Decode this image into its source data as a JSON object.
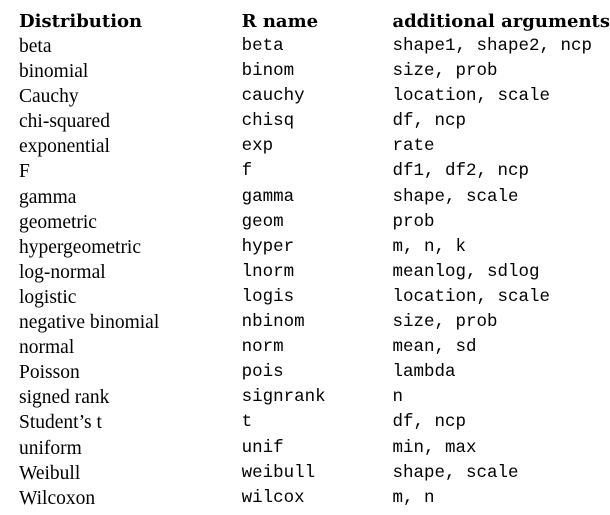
{
  "table": {
    "headers": [
      "Distribution",
      "R name",
      "additional arguments"
    ],
    "rows": [
      {
        "distribution": "beta",
        "r_name": "beta",
        "args": "shape1, shape2, ncp"
      },
      {
        "distribution": "binomial",
        "r_name": "binom",
        "args": "size, prob"
      },
      {
        "distribution": "Cauchy",
        "r_name": "cauchy",
        "args": "location, scale"
      },
      {
        "distribution": "chi-squared",
        "r_name": "chisq",
        "args": "df, ncp"
      },
      {
        "distribution": "exponential",
        "r_name": "exp",
        "args": "rate"
      },
      {
        "distribution": "F",
        "r_name": "f",
        "args": "df1, df2, ncp"
      },
      {
        "distribution": "gamma",
        "r_name": "gamma",
        "args": "shape, scale"
      },
      {
        "distribution": "geometric",
        "r_name": "geom",
        "args": "prob"
      },
      {
        "distribution": "hypergeometric",
        "r_name": "hyper",
        "args": "m, n, k"
      },
      {
        "distribution": "log-normal",
        "r_name": "lnorm",
        "args": "meanlog, sdlog"
      },
      {
        "distribution": "logistic",
        "r_name": "logis",
        "args": "location, scale"
      },
      {
        "distribution": "negative binomial",
        "r_name": "nbinom",
        "args": "size, prob"
      },
      {
        "distribution": "normal",
        "r_name": "norm",
        "args": "mean, sd"
      },
      {
        "distribution": "Poisson",
        "r_name": "pois",
        "args": "lambda"
      },
      {
        "distribution": "signed rank",
        "r_name": "signrank",
        "args": "n"
      },
      {
        "distribution": "Student’s t",
        "r_name": "t",
        "args": "df, ncp"
      },
      {
        "distribution": "uniform",
        "r_name": "unif",
        "args": "min, max"
      },
      {
        "distribution": "Weibull",
        "r_name": "weibull",
        "args": "shape, scale"
      },
      {
        "distribution": "Wilcoxon",
        "r_name": "wilcox",
        "args": "m, n"
      }
    ]
  }
}
